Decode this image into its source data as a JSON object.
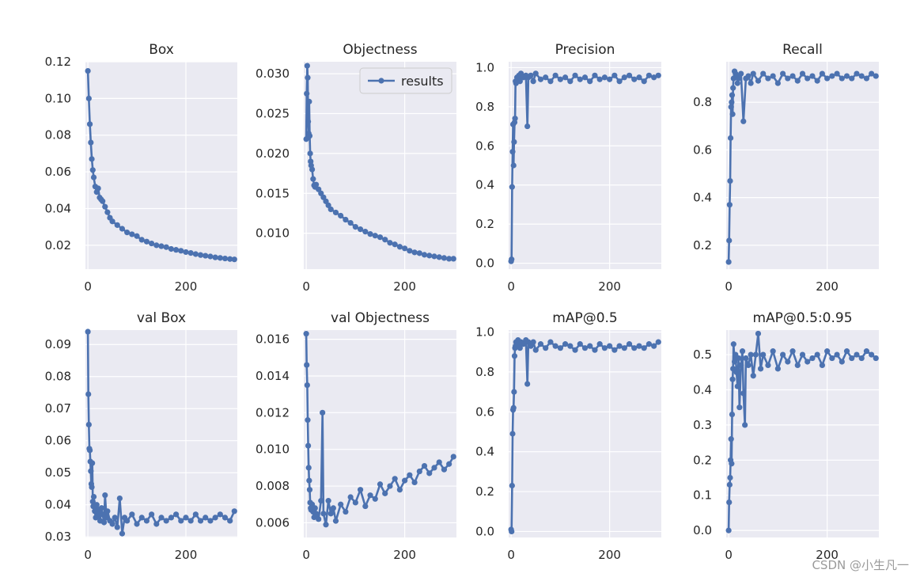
{
  "figure": {
    "colors": {
      "plot_bg": "#EAEAF2",
      "grid": "#FFFFFF",
      "series": "#4C72B0",
      "text": "#262626"
    },
    "legend": {
      "label": "results",
      "location": "top-right",
      "panel": 1
    },
    "watermark": "CSDN @小生凡一"
  },
  "chart_data": [
    {
      "type": "line",
      "title": "Box",
      "xlim": [
        -5,
        305
      ],
      "ylim": [
        0.007,
        0.12
      ],
      "xticks": [
        0,
        200
      ],
      "yticks": [
        0.02,
        0.04,
        0.06,
        0.08,
        0.1,
        0.12
      ],
      "ytick_labels": [
        "0.02",
        "0.04",
        "0.06",
        "0.08",
        "0.10",
        "0.12"
      ],
      "series": [
        {
          "name": "results",
          "x": [
            0,
            2,
            4,
            6,
            8,
            10,
            12,
            15,
            18,
            21,
            24,
            27,
            30,
            35,
            40,
            45,
            50,
            60,
            70,
            80,
            90,
            100,
            110,
            120,
            130,
            140,
            150,
            160,
            170,
            180,
            190,
            200,
            210,
            220,
            230,
            240,
            250,
            260,
            270,
            280,
            290,
            299
          ],
          "y": [
            0.115,
            0.1,
            0.086,
            0.076,
            0.067,
            0.061,
            0.057,
            0.052,
            0.049,
            0.051,
            0.046,
            0.045,
            0.044,
            0.041,
            0.038,
            0.035,
            0.033,
            0.031,
            0.029,
            0.027,
            0.026,
            0.025,
            0.023,
            0.022,
            0.021,
            0.02,
            0.0195,
            0.019,
            0.018,
            0.0175,
            0.017,
            0.0163,
            0.0158,
            0.0152,
            0.0147,
            0.0143,
            0.0139,
            0.0134,
            0.0131,
            0.0128,
            0.0125,
            0.0123
          ]
        }
      ]
    },
    {
      "type": "line",
      "title": "Objectness",
      "xlim": [
        -5,
        305
      ],
      "ylim": [
        0.0055,
        0.0315
      ],
      "xticks": [
        0,
        200
      ],
      "yticks": [
        0.01,
        0.015,
        0.02,
        0.025,
        0.03
      ],
      "ytick_labels": [
        "0.010",
        "0.015",
        "0.020",
        "0.025",
        "0.030"
      ],
      "series": [
        {
          "name": "results",
          "x": [
            0,
            1,
            2,
            3,
            4,
            5,
            6,
            7,
            8,
            9,
            10,
            12,
            14,
            16,
            18,
            20,
            25,
            30,
            35,
            40,
            45,
            50,
            60,
            70,
            80,
            90,
            100,
            110,
            120,
            130,
            140,
            150,
            160,
            170,
            180,
            190,
            200,
            210,
            220,
            230,
            240,
            250,
            260,
            270,
            280,
            290,
            299
          ],
          "y": [
            0.0218,
            0.0275,
            0.031,
            0.0295,
            0.024,
            0.0225,
            0.0265,
            0.0222,
            0.02,
            0.019,
            0.0185,
            0.018,
            0.0168,
            0.016,
            0.0158,
            0.0161,
            0.0155,
            0.015,
            0.0145,
            0.014,
            0.0135,
            0.013,
            0.0126,
            0.0122,
            0.0117,
            0.0113,
            0.0108,
            0.0105,
            0.0102,
            0.0099,
            0.0097,
            0.0095,
            0.0092,
            0.0088,
            0.0086,
            0.0083,
            0.0081,
            0.0078,
            0.0076,
            0.0075,
            0.0073,
            0.0072,
            0.0071,
            0.007,
            0.0069,
            0.0068,
            0.0068
          ]
        }
      ]
    },
    {
      "type": "line",
      "title": "Precision",
      "xlim": [
        -5,
        305
      ],
      "ylim": [
        -0.03,
        1.03
      ],
      "xticks": [
        0,
        200
      ],
      "yticks": [
        0.0,
        0.2,
        0.4,
        0.6,
        0.8,
        1.0
      ],
      "ytick_labels": [
        "0.0",
        "0.2",
        "0.4",
        "0.6",
        "0.8",
        "1.0"
      ],
      "series": [
        {
          "name": "results",
          "x": [
            0,
            1,
            2,
            3,
            4,
            5,
            6,
            7,
            8,
            9,
            10,
            12,
            14,
            16,
            18,
            20,
            25,
            30,
            33,
            35,
            40,
            45,
            50,
            60,
            70,
            80,
            90,
            100,
            110,
            120,
            130,
            140,
            150,
            160,
            170,
            180,
            190,
            200,
            210,
            220,
            230,
            240,
            250,
            260,
            270,
            280,
            290,
            299
          ],
          "y": [
            0.01,
            0.02,
            0.39,
            0.57,
            0.71,
            0.5,
            0.62,
            0.72,
            0.74,
            0.93,
            0.92,
            0.95,
            0.94,
            0.96,
            0.93,
            0.97,
            0.95,
            0.96,
            0.7,
            0.95,
            0.96,
            0.93,
            0.97,
            0.94,
            0.95,
            0.93,
            0.96,
            0.94,
            0.95,
            0.93,
            0.96,
            0.94,
            0.95,
            0.93,
            0.96,
            0.94,
            0.95,
            0.94,
            0.96,
            0.93,
            0.95,
            0.96,
            0.94,
            0.95,
            0.93,
            0.96,
            0.95,
            0.96
          ]
        }
      ]
    },
    {
      "type": "line",
      "title": "Recall",
      "xlim": [
        -5,
        305
      ],
      "ylim": [
        0.1,
        0.97
      ],
      "xticks": [
        0,
        200
      ],
      "yticks": [
        0.2,
        0.4,
        0.6,
        0.8
      ],
      "ytick_labels": [
        "0.2",
        "0.4",
        "0.6",
        "0.8"
      ],
      "series": [
        {
          "name": "results",
          "x": [
            0,
            1,
            2,
            3,
            4,
            5,
            6,
            7,
            8,
            9,
            10,
            12,
            14,
            16,
            18,
            20,
            25,
            30,
            35,
            40,
            45,
            50,
            60,
            70,
            80,
            90,
            100,
            110,
            120,
            130,
            140,
            150,
            160,
            170,
            180,
            190,
            200,
            210,
            220,
            230,
            240,
            250,
            260,
            270,
            280,
            290,
            299
          ],
          "y": [
            0.13,
            0.22,
            0.37,
            0.47,
            0.65,
            0.78,
            0.8,
            0.83,
            0.75,
            0.86,
            0.9,
            0.93,
            0.92,
            0.91,
            0.88,
            0.9,
            0.92,
            0.72,
            0.9,
            0.91,
            0.88,
            0.92,
            0.89,
            0.92,
            0.9,
            0.91,
            0.88,
            0.92,
            0.9,
            0.91,
            0.89,
            0.92,
            0.9,
            0.91,
            0.89,
            0.92,
            0.9,
            0.91,
            0.92,
            0.9,
            0.91,
            0.9,
            0.92,
            0.91,
            0.9,
            0.92,
            0.91
          ]
        }
      ]
    },
    {
      "type": "line",
      "title": "val Box",
      "xlim": [
        -5,
        305
      ],
      "ylim": [
        0.0298,
        0.0945
      ],
      "xticks": [
        0,
        200
      ],
      "yticks": [
        0.03,
        0.04,
        0.05,
        0.06,
        0.07,
        0.08,
        0.09
      ],
      "ytick_labels": [
        "0.03",
        "0.04",
        "0.05",
        "0.06",
        "0.07",
        "0.08",
        "0.09"
      ],
      "series": [
        {
          "name": "results",
          "x": [
            0,
            1,
            2,
            3,
            4,
            5,
            6,
            7,
            8,
            9,
            10,
            11,
            12,
            14,
            16,
            18,
            20,
            22,
            25,
            28,
            30,
            33,
            35,
            38,
            40,
            45,
            50,
            55,
            60,
            65,
            70,
            75,
            80,
            90,
            100,
            110,
            120,
            130,
            140,
            150,
            160,
            170,
            180,
            190,
            200,
            210,
            220,
            230,
            240,
            250,
            260,
            270,
            280,
            290,
            299
          ],
          "y": [
            0.094,
            0.0745,
            0.065,
            0.0575,
            0.057,
            0.0535,
            0.0505,
            0.0465,
            0.0455,
            0.053,
            0.041,
            0.0395,
            0.0425,
            0.038,
            0.036,
            0.04,
            0.0365,
            0.0385,
            0.035,
            0.039,
            0.037,
            0.0345,
            0.043,
            0.036,
            0.038,
            0.035,
            0.034,
            0.036,
            0.033,
            0.042,
            0.031,
            0.036,
            0.035,
            0.037,
            0.034,
            0.036,
            0.035,
            0.037,
            0.034,
            0.036,
            0.035,
            0.036,
            0.037,
            0.035,
            0.036,
            0.035,
            0.037,
            0.035,
            0.036,
            0.035,
            0.036,
            0.037,
            0.036,
            0.035,
            0.038
          ]
        }
      ]
    },
    {
      "type": "line",
      "title": "val Objectness",
      "xlim": [
        -5,
        305
      ],
      "ylim": [
        0.0052,
        0.0165
      ],
      "xticks": [
        0,
        200
      ],
      "yticks": [
        0.006,
        0.008,
        0.01,
        0.012,
        0.014,
        0.016
      ],
      "ytick_labels": [
        "0.006",
        "0.008",
        "0.010",
        "0.012",
        "0.014",
        "0.016"
      ],
      "series": [
        {
          "name": "results",
          "x": [
            0,
            1,
            2,
            3,
            4,
            5,
            6,
            7,
            8,
            9,
            10,
            12,
            14,
            16,
            18,
            20,
            25,
            30,
            33,
            35,
            40,
            45,
            50,
            55,
            60,
            70,
            80,
            90,
            100,
            110,
            120,
            130,
            140,
            150,
            160,
            170,
            180,
            190,
            200,
            210,
            220,
            230,
            240,
            250,
            260,
            270,
            280,
            290,
            299
          ],
          "y": [
            0.0163,
            0.0146,
            0.0135,
            0.0116,
            0.0102,
            0.009,
            0.0083,
            0.0078,
            0.0071,
            0.0068,
            0.0067,
            0.007,
            0.0066,
            0.0063,
            0.0068,
            0.0065,
            0.0062,
            0.0072,
            0.012,
            0.0065,
            0.0059,
            0.0072,
            0.0065,
            0.0068,
            0.0061,
            0.007,
            0.0066,
            0.0074,
            0.0071,
            0.0078,
            0.0069,
            0.0075,
            0.0073,
            0.0081,
            0.0076,
            0.008,
            0.0084,
            0.0078,
            0.0083,
            0.0086,
            0.0082,
            0.0088,
            0.0091,
            0.0087,
            0.009,
            0.0093,
            0.0089,
            0.0092,
            0.0096
          ]
        }
      ]
    },
    {
      "type": "line",
      "title": "mAP@0.5",
      "xlim": [
        -5,
        305
      ],
      "ylim": [
        -0.03,
        1.01
      ],
      "xticks": [
        0,
        200
      ],
      "yticks": [
        0.0,
        0.2,
        0.4,
        0.6,
        0.8,
        1.0
      ],
      "ytick_labels": [
        "0.0",
        "0.2",
        "0.4",
        "0.6",
        "0.8",
        "1.0"
      ],
      "series": [
        {
          "name": "results",
          "x": [
            0,
            1,
            2,
            3,
            4,
            5,
            6,
            7,
            8,
            9,
            10,
            12,
            14,
            16,
            18,
            20,
            25,
            30,
            33,
            35,
            40,
            45,
            50,
            60,
            70,
            80,
            90,
            100,
            110,
            120,
            130,
            140,
            150,
            160,
            170,
            180,
            190,
            200,
            210,
            220,
            230,
            240,
            250,
            260,
            270,
            280,
            290,
            299
          ],
          "y": [
            0.01,
            0.0,
            0.23,
            0.49,
            0.61,
            0.62,
            0.7,
            0.88,
            0.92,
            0.93,
            0.95,
            0.94,
            0.96,
            0.95,
            0.92,
            0.95,
            0.94,
            0.96,
            0.74,
            0.95,
            0.93,
            0.95,
            0.91,
            0.94,
            0.92,
            0.95,
            0.93,
            0.92,
            0.94,
            0.93,
            0.91,
            0.94,
            0.92,
            0.93,
            0.91,
            0.94,
            0.92,
            0.93,
            0.91,
            0.93,
            0.92,
            0.94,
            0.92,
            0.93,
            0.92,
            0.94,
            0.93,
            0.95
          ]
        }
      ]
    },
    {
      "type": "line",
      "title": "mAP@0.5:0.95",
      "xlim": [
        -5,
        305
      ],
      "ylim": [
        -0.02,
        0.57
      ],
      "xticks": [
        0,
        200
      ],
      "yticks": [
        0.0,
        0.1,
        0.2,
        0.3,
        0.4,
        0.5
      ],
      "ytick_labels": [
        "0.0",
        "0.1",
        "0.2",
        "0.3",
        "0.4",
        "0.5"
      ],
      "series": [
        {
          "name": "results",
          "x": [
            0,
            1,
            2,
            3,
            4,
            5,
            6,
            7,
            8,
            9,
            10,
            12,
            14,
            16,
            18,
            20,
            22,
            25,
            28,
            30,
            33,
            35,
            40,
            45,
            50,
            55,
            60,
            65,
            70,
            80,
            90,
            100,
            110,
            120,
            130,
            140,
            150,
            160,
            170,
            180,
            190,
            200,
            210,
            220,
            230,
            240,
            250,
            260,
            270,
            280,
            290,
            299
          ],
          "y": [
            0.0,
            0.08,
            0.13,
            0.15,
            0.2,
            0.26,
            0.19,
            0.33,
            0.43,
            0.46,
            0.53,
            0.48,
            0.5,
            0.45,
            0.41,
            0.49,
            0.35,
            0.47,
            0.51,
            0.39,
            0.3,
            0.49,
            0.47,
            0.5,
            0.44,
            0.5,
            0.56,
            0.46,
            0.5,
            0.47,
            0.51,
            0.46,
            0.5,
            0.48,
            0.51,
            0.47,
            0.5,
            0.48,
            0.49,
            0.5,
            0.47,
            0.51,
            0.49,
            0.5,
            0.48,
            0.51,
            0.49,
            0.5,
            0.49,
            0.51,
            0.5,
            0.49
          ]
        }
      ]
    }
  ]
}
